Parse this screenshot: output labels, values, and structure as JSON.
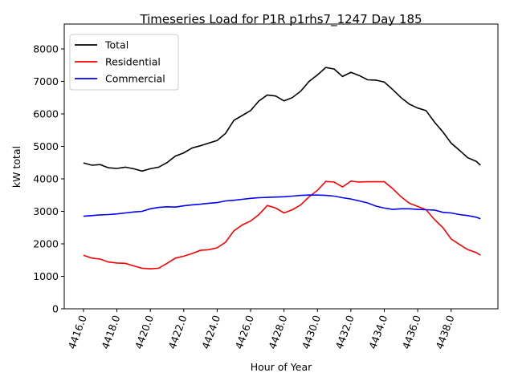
{
  "chart_data": {
    "type": "line",
    "title": "Timeseries Load for P1R p1rhs7_1247  Day 185",
    "xlabel": "Hour of Year",
    "ylabel": "kW total",
    "xlim": [
      4414.85,
      4440.8
    ],
    "ylim": [
      0,
      8765
    ],
    "xticks": [
      4416,
      4418,
      4420,
      4422,
      4424,
      4426,
      4428,
      4430,
      4432,
      4434,
      4436,
      4438
    ],
    "xtick_labels": [
      "4416.0",
      "4418.0",
      "4420.0",
      "4422.0",
      "4424.0",
      "4426.0",
      "4428.0",
      "4430.0",
      "4432.0",
      "4434.0",
      "4436.0",
      "4438.0"
    ],
    "yticks": [
      0,
      1000,
      2000,
      3000,
      4000,
      5000,
      6000,
      7000,
      8000
    ],
    "ytick_labels": [
      "0",
      "1000",
      "2000",
      "3000",
      "4000",
      "5000",
      "6000",
      "7000",
      "8000"
    ],
    "grid": false,
    "legend_position": "top-left",
    "x": [
      4416,
      4416.5,
      4417,
      4417.5,
      4418,
      4418.5,
      4419,
      4419.5,
      4420,
      4420.5,
      4421,
      4421.5,
      4422,
      4422.5,
      4423,
      4423.5,
      4424,
      4424.5,
      4425,
      4425.5,
      4426,
      4426.5,
      4427,
      4427.5,
      4428,
      4428.5,
      4429,
      4429.5,
      4430,
      4430.5,
      4431,
      4431.5,
      4432,
      4432.5,
      4433,
      4433.5,
      4434,
      4434.5,
      4435,
      4435.5,
      4436,
      4436.5,
      4437,
      4437.5,
      4438,
      4438.5,
      4439,
      4439.5,
      4439.75
    ],
    "series": [
      {
        "name": "Total",
        "color": "#000000",
        "values": [
          4490,
          4420,
          4440,
          4340,
          4320,
          4360,
          4310,
          4240,
          4310,
          4360,
          4500,
          4700,
          4800,
          4950,
          5020,
          5100,
          5180,
          5400,
          5800,
          5950,
          6100,
          6400,
          6580,
          6550,
          6400,
          6500,
          6700,
          7000,
          7200,
          7430,
          7380,
          7150,
          7280,
          7180,
          7050,
          7040,
          6980,
          6750,
          6500,
          6300,
          6180,
          6100,
          5750,
          5450,
          5100,
          4880,
          4650,
          4540,
          4420
        ]
      },
      {
        "name": "Residential",
        "color": "#ff0000",
        "values": [
          1650,
          1560,
          1530,
          1440,
          1410,
          1400,
          1320,
          1250,
          1230,
          1250,
          1400,
          1560,
          1620,
          1700,
          1800,
          1820,
          1880,
          2050,
          2400,
          2580,
          2700,
          2900,
          3180,
          3100,
          2950,
          3050,
          3200,
          3450,
          3650,
          3920,
          3900,
          3750,
          3930,
          3900,
          3910,
          3910,
          3910,
          3700,
          3450,
          3250,
          3150,
          3050,
          2750,
          2500,
          2150,
          1980,
          1820,
          1730,
          1650
        ]
      },
      {
        "name": "Commercial",
        "color": "#0000ff",
        "values": [
          2850,
          2870,
          2890,
          2900,
          2920,
          2950,
          2980,
          3000,
          3080,
          3120,
          3140,
          3130,
          3170,
          3200,
          3220,
          3250,
          3270,
          3320,
          3340,
          3370,
          3400,
          3420,
          3430,
          3440,
          3450,
          3470,
          3490,
          3500,
          3500,
          3490,
          3470,
          3420,
          3380,
          3320,
          3260,
          3160,
          3100,
          3060,
          3080,
          3080,
          3060,
          3050,
          3040,
          2970,
          2950,
          2900,
          2870,
          2820,
          2770
        ]
      }
    ]
  }
}
